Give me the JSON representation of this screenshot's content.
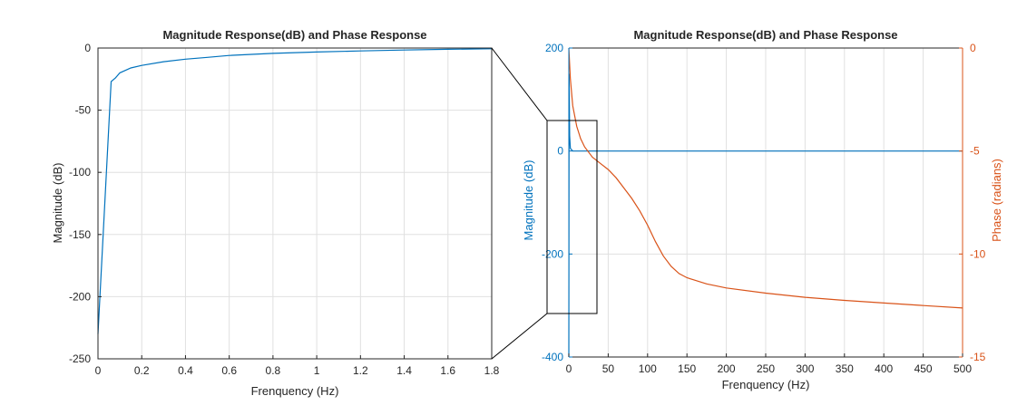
{
  "chart_data": [
    {
      "type": "line",
      "title": "Magnitude Response(dB) and Phase Response",
      "xlabel": "Frenquency (Hz)",
      "ylabel": "Magnitude (dB)",
      "xlim": [
        0,
        1.8
      ],
      "ylim": [
        -250,
        0
      ],
      "xticks": [
        "0",
        "0.2",
        "0.4",
        "0.6",
        "0.8",
        "1",
        "1.2",
        "1.4",
        "1.6",
        "1.8"
      ],
      "yticks": [
        "0",
        "-50",
        "-100",
        "-150",
        "-200",
        "-250"
      ],
      "grid": true,
      "series": [
        {
          "color": "#0072BD",
          "x": [
            0,
            0.06,
            0.08,
            0.1,
            0.15,
            0.2,
            0.3,
            0.4,
            0.5,
            0.6,
            0.8,
            1.0,
            1.2,
            1.4,
            1.6,
            1.8
          ],
          "y": [
            -230,
            -27,
            -24,
            -20,
            -16,
            -14,
            -11,
            -9,
            -7.5,
            -6,
            -4.3,
            -3.2,
            -2.3,
            -1.6,
            -1.0,
            -0.6
          ]
        }
      ]
    },
    {
      "type": "line",
      "title": "Magnitude Response(dB) and Phase Response",
      "xlabel": "Frenquency (Hz)",
      "ylabel_left": "Magnitude (dB)",
      "ylabel_right": "Phase (radians)",
      "xlim": [
        0,
        500
      ],
      "ylim_left": [
        -400,
        200
      ],
      "ylim_right": [
        -15,
        0
      ],
      "xticks": [
        "0",
        "50",
        "100",
        "150",
        "200",
        "250",
        "300",
        "350",
        "400",
        "450",
        "500"
      ],
      "yticks_left": [
        "200",
        "0",
        "-200",
        "-400"
      ],
      "yticks_right": [
        "0",
        "-5",
        "-10",
        "-15"
      ],
      "grid": true,
      "left_color": "#0072BD",
      "right_color": "#D95319",
      "series": [
        {
          "axis": "left",
          "color": "#0072BD",
          "x": [
            0,
            0.3,
            1,
            2,
            5,
            10,
            500
          ],
          "y": [
            -400,
            150,
            30,
            5,
            0,
            0,
            0
          ]
        },
        {
          "axis": "right",
          "color": "#D95319",
          "x": [
            0,
            2,
            5,
            10,
            15,
            20,
            30,
            40,
            50,
            60,
            70,
            80,
            90,
            100,
            110,
            120,
            130,
            140,
            150,
            175,
            200,
            250,
            300,
            350,
            400,
            450,
            500
          ],
          "y": [
            0,
            -1.5,
            -2.8,
            -3.8,
            -4.4,
            -4.8,
            -5.3,
            -5.6,
            -5.9,
            -6.3,
            -6.8,
            -7.3,
            -7.9,
            -8.6,
            -9.4,
            -10.1,
            -10.6,
            -10.95,
            -11.15,
            -11.45,
            -11.65,
            -11.9,
            -12.1,
            -12.25,
            -12.38,
            -12.5,
            -12.62
          ]
        }
      ]
    }
  ]
}
